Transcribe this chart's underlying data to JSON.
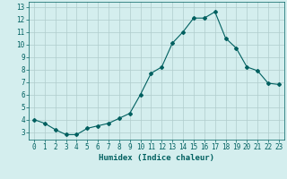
{
  "x": [
    0,
    1,
    2,
    3,
    4,
    5,
    6,
    7,
    8,
    9,
    10,
    11,
    12,
    13,
    14,
    15,
    16,
    17,
    18,
    19,
    20,
    21,
    22,
    23
  ],
  "y": [
    4.0,
    3.7,
    3.2,
    2.8,
    2.8,
    3.3,
    3.5,
    3.7,
    4.1,
    4.5,
    6.0,
    7.7,
    8.2,
    10.1,
    11.0,
    12.1,
    12.1,
    12.6,
    10.5,
    9.7,
    8.2,
    7.9,
    6.9,
    6.8
  ],
  "line_color": "#006060",
  "marker": "D",
  "marker_size": 2,
  "bg_color": "#d4eeee",
  "grid_color": "#b0cccc",
  "xlabel": "Humidex (Indice chaleur)",
  "xlim": [
    -0.5,
    23.5
  ],
  "ylim": [
    2.4,
    13.4
  ],
  "yticks": [
    3,
    4,
    5,
    6,
    7,
    8,
    9,
    10,
    11,
    12,
    13
  ],
  "xticks": [
    0,
    1,
    2,
    3,
    4,
    5,
    6,
    7,
    8,
    9,
    10,
    11,
    12,
    13,
    14,
    15,
    16,
    17,
    18,
    19,
    20,
    21,
    22,
    23
  ],
  "tick_fontsize": 5.5,
  "xlabel_fontsize": 6.5
}
